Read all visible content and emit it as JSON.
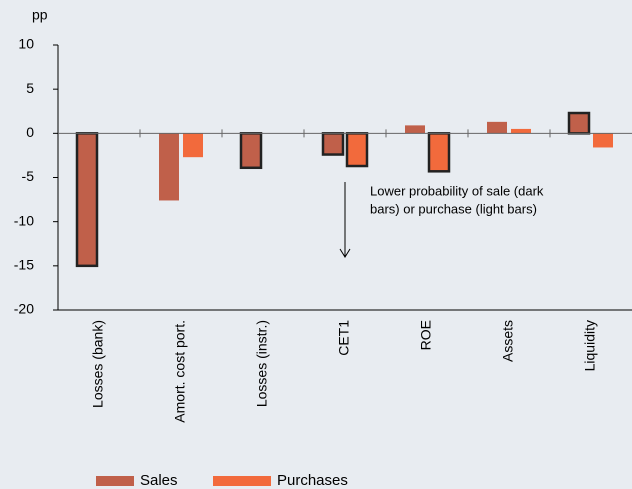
{
  "chart_data": {
    "type": "bar",
    "y_axis_label": "pp",
    "categories": [
      "Losses (bank)",
      "Amort. cost port.",
      "Losses (instr.)",
      "CET1",
      "ROE",
      "Assets",
      "Liquidity"
    ],
    "series": [
      {
        "name": "Sales",
        "color": "#c0604a",
        "values": [
          -15,
          -7.6,
          -3.9,
          -2.4,
          0.9,
          1.3,
          2.3
        ],
        "outlined": [
          true,
          false,
          true,
          true,
          false,
          false,
          true
        ]
      },
      {
        "name": "Purchases",
        "color": "#f26a3c",
        "values": [
          0,
          -2.7,
          0,
          -3.7,
          -4.3,
          0.5,
          -1.6
        ],
        "outlined": [
          false,
          false,
          false,
          true,
          true,
          false,
          false
        ]
      }
    ],
    "annotation": [
      "Lower probability of sale (dark",
      "bars) or purchase (light bars)"
    ],
    "ylim": [
      -20,
      10
    ],
    "yticks": [
      -20,
      -15,
      -10,
      -5,
      0,
      5,
      10
    ],
    "grid": false
  }
}
